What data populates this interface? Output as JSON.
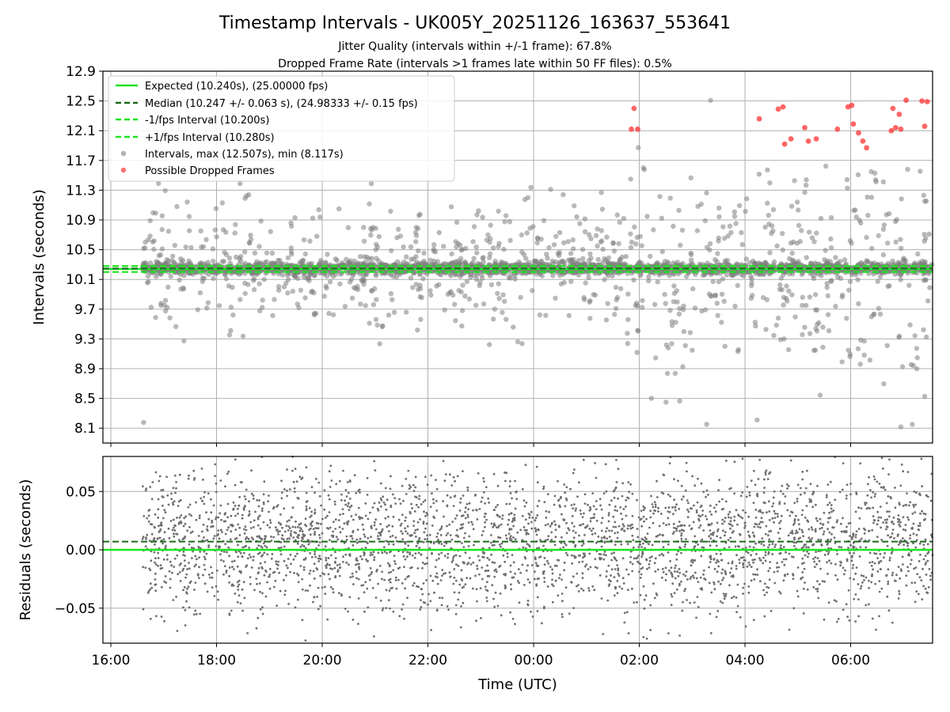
{
  "title": "Timestamp Intervals - UK005Y_20251126_163637_553641",
  "subtitle_jitter": "Jitter Quality (intervals within +/-1 frame): 67.8%",
  "subtitle_dropped": "Dropped Frame Rate (intervals >1 frames late within 50 FF files): 0.5%",
  "colors": {
    "expected": "#1ee41e",
    "median": "#1a6b1a",
    "fps_bounds": "#1ee41e",
    "intervals": "#808080",
    "dropped": "#ff3333",
    "grid": "#b0b0b0"
  },
  "chart_data": [
    {
      "type": "scatter",
      "panel": "intervals",
      "ylabel": "Intervals (seconds)",
      "xlabel": "",
      "xlim_hours": [
        15.85,
        31.55
      ],
      "ylim": [
        7.9,
        12.9
      ],
      "xticks_hours": [
        16,
        18,
        20,
        22,
        24,
        26,
        28,
        30
      ],
      "yticks": [
        "8.1",
        "8.5",
        "8.9",
        "9.3",
        "9.7",
        "10.1",
        "10.5",
        "10.9",
        "11.3",
        "11.7",
        "12.1",
        "12.5",
        "12.9"
      ],
      "grid": true,
      "legend_position": "upper-left",
      "legend": [
        {
          "label": "Expected (10.240s), (25.00000 fps)",
          "style": "solid-line",
          "color": "#1ee41e"
        },
        {
          "label": "Median (10.247 +/- 0.063 s), (24.98333 +/- 0.15 fps)",
          "style": "dashed-line",
          "color": "#1a6b1a"
        },
        {
          "label": "-1/fps Interval (10.200s)",
          "style": "dashed-line",
          "color": "#1ee41e"
        },
        {
          "label": "+1/fps Interval (10.280s)",
          "style": "dashed-line",
          "color": "#1ee41e"
        },
        {
          "label": "Intervals, max (12.507s), min (8.117s)",
          "style": "marker",
          "color": "#808080"
        },
        {
          "label": "Possible Dropped Frames",
          "style": "marker",
          "color": "#ff3333"
        }
      ],
      "expected": 10.24,
      "median": 10.247,
      "minus_fps": 10.2,
      "plus_fps": 10.28,
      "data_start_hour": 16.6,
      "data_end_hour": 31.55,
      "interval_max": 12.507,
      "interval_min": 8.117,
      "dropped_frames": [
        {
          "x": 25.85,
          "y": 12.12
        },
        {
          "x": 25.9,
          "y": 12.4
        },
        {
          "x": 25.97,
          "y": 12.12
        },
        {
          "x": 28.27,
          "y": 12.26
        },
        {
          "x": 28.63,
          "y": 12.39
        },
        {
          "x": 28.72,
          "y": 12.42
        },
        {
          "x": 28.75,
          "y": 11.92
        },
        {
          "x": 28.87,
          "y": 11.99
        },
        {
          "x": 29.13,
          "y": 12.14
        },
        {
          "x": 29.2,
          "y": 11.96
        },
        {
          "x": 29.35,
          "y": 11.99
        },
        {
          "x": 29.75,
          "y": 12.12
        },
        {
          "x": 29.95,
          "y": 12.42
        },
        {
          "x": 30.02,
          "y": 12.44
        },
        {
          "x": 30.05,
          "y": 12.19
        },
        {
          "x": 30.15,
          "y": 12.07
        },
        {
          "x": 30.23,
          "y": 11.96
        },
        {
          "x": 30.3,
          "y": 11.87
        },
        {
          "x": 30.77,
          "y": 12.1
        },
        {
          "x": 30.8,
          "y": 12.4
        },
        {
          "x": 30.85,
          "y": 12.14
        },
        {
          "x": 30.95,
          "y": 12.12
        },
        {
          "x": 30.92,
          "y": 12.32
        },
        {
          "x": 31.05,
          "y": 12.51
        },
        {
          "x": 31.4,
          "y": 12.16
        },
        {
          "x": 31.45,
          "y": 12.49
        },
        {
          "x": 31.35,
          "y": 12.5
        }
      ]
    },
    {
      "type": "scatter",
      "panel": "residuals",
      "ylabel": "Residuals (seconds)",
      "xlabel": "Time (UTC)",
      "xlim_hours": [
        15.85,
        31.55
      ],
      "ylim": [
        -0.08,
        0.08
      ],
      "xticks_hours": [
        16,
        18,
        20,
        22,
        24,
        26,
        28,
        30
      ],
      "xtick_labels": [
        "16:00",
        "18:00",
        "20:00",
        "22:00",
        "00:00",
        "02:00",
        "04:00",
        "06:00"
      ],
      "yticks": [
        "−0.05",
        "0.00",
        "0.05"
      ],
      "ytick_values": [
        -0.05,
        0.0,
        0.05
      ],
      "grid": true,
      "expected_residual": 0.0,
      "median_residual": 0.007
    }
  ]
}
